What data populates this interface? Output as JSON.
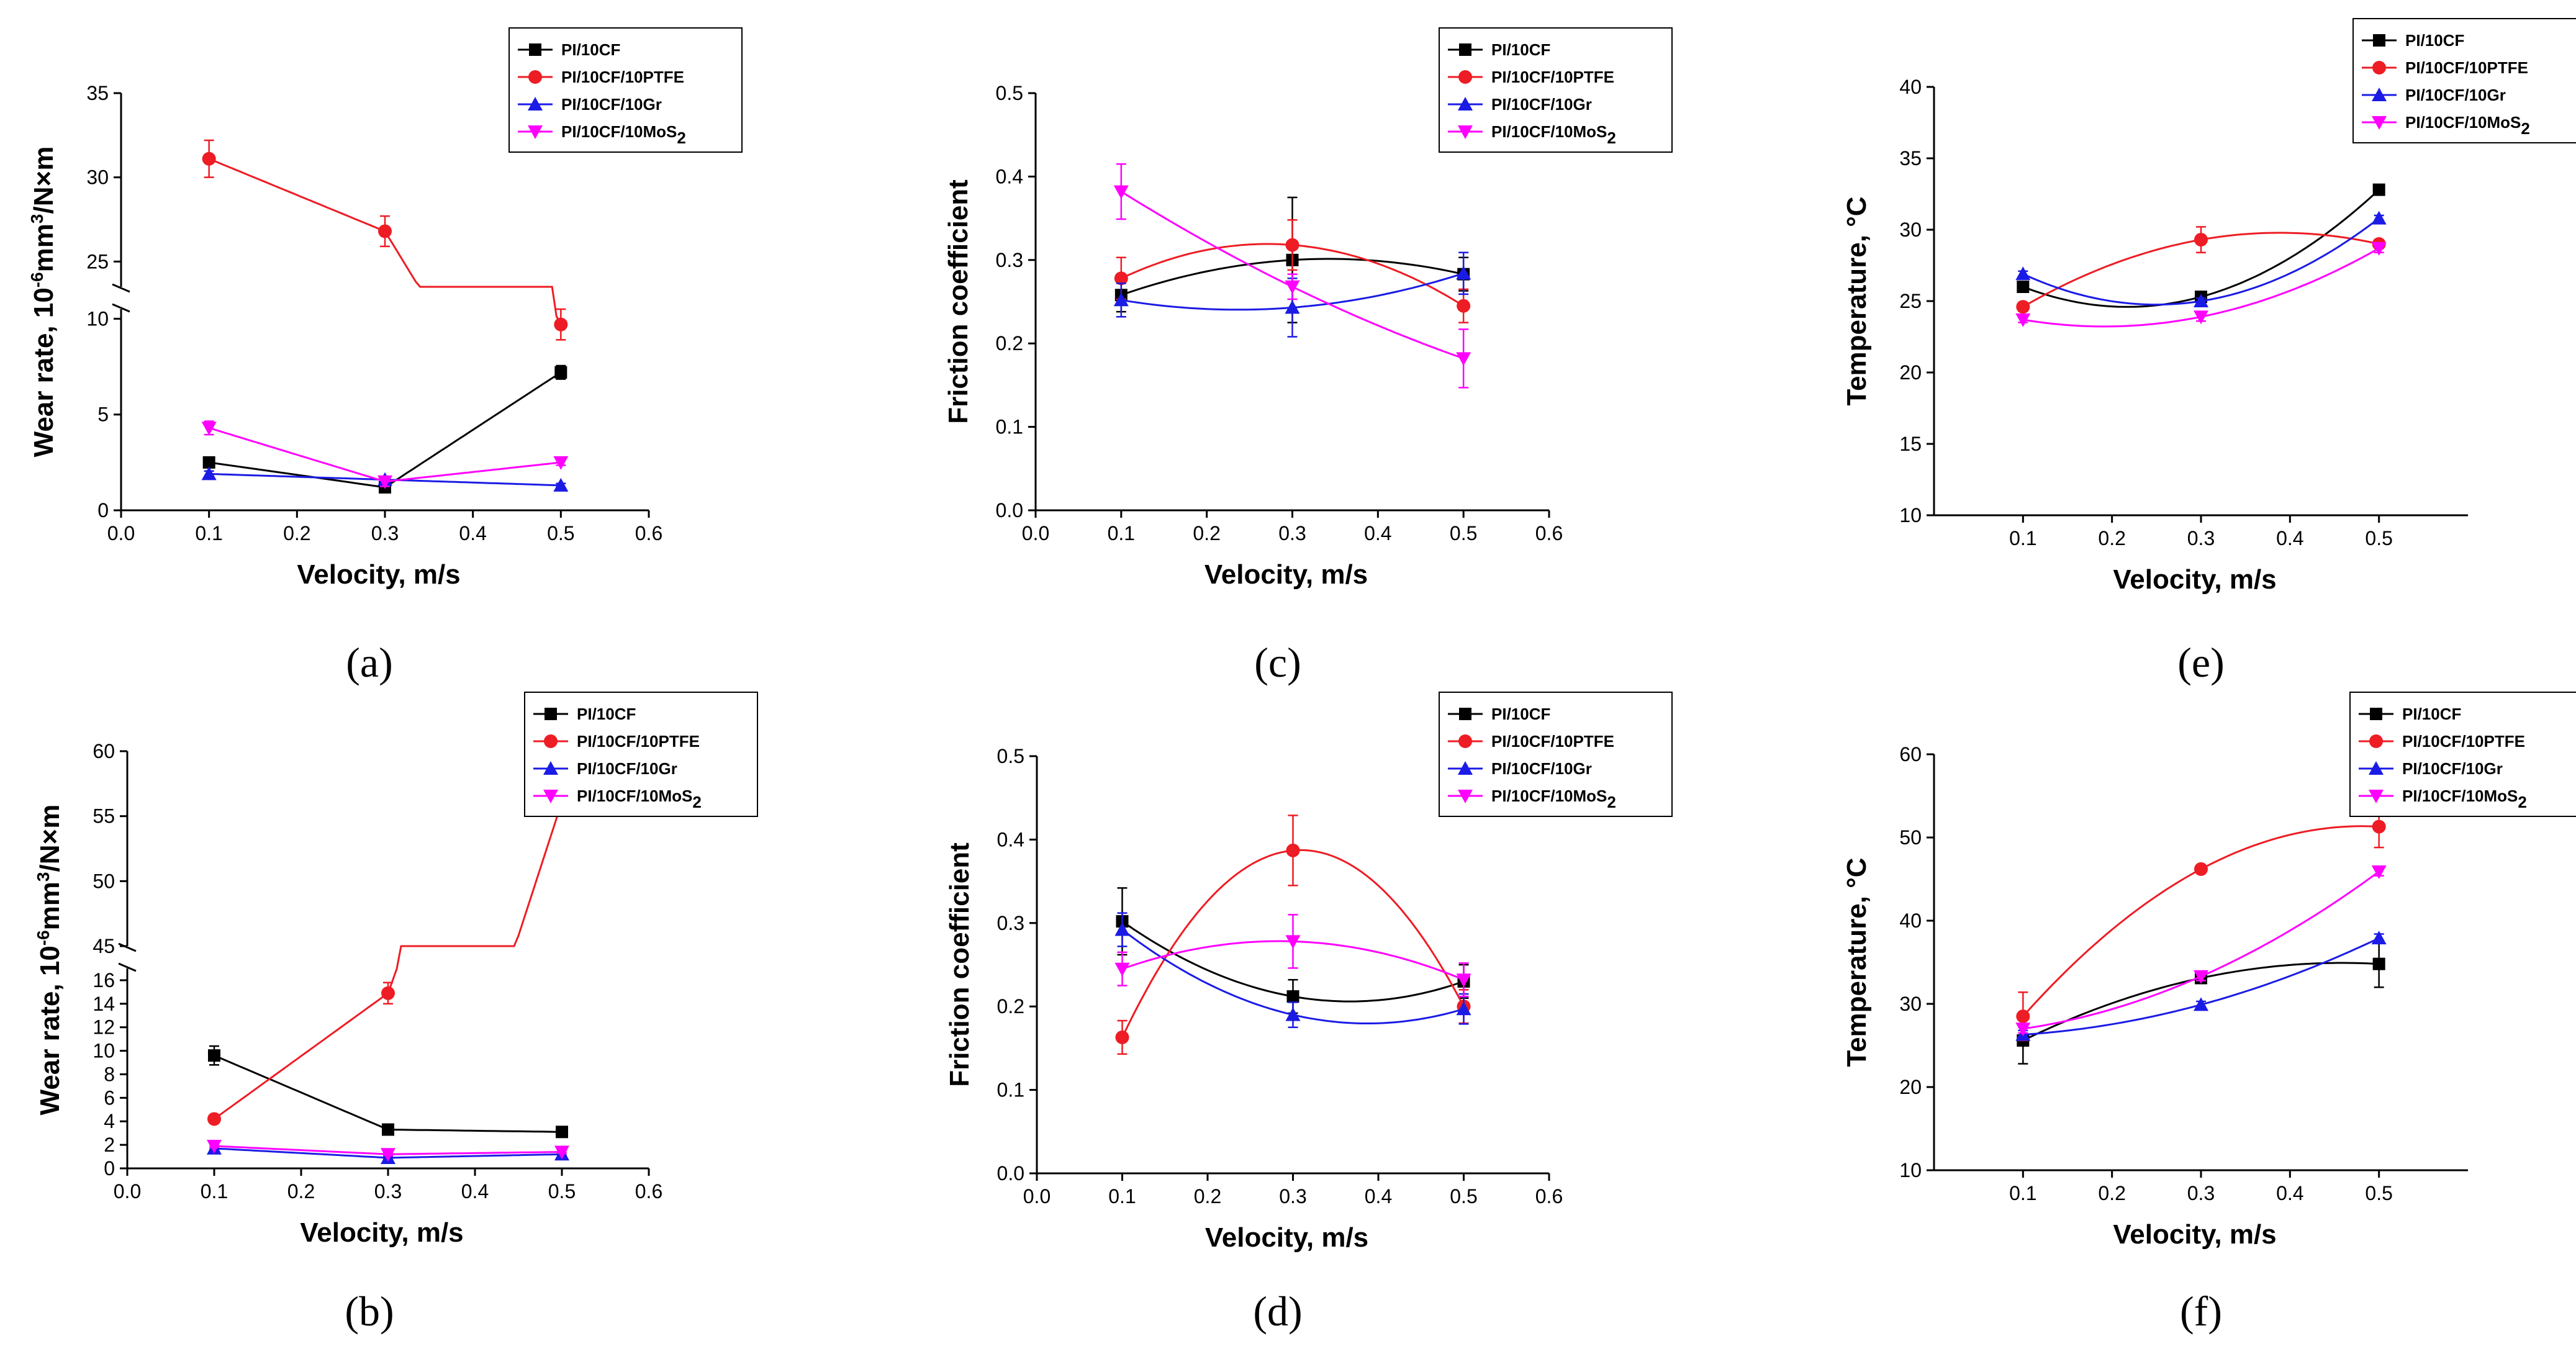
{
  "figure": {
    "series_names": [
      "PI/10CF",
      "PI/10CF/10PTFE",
      "PI/10CF/10Gr",
      "PI/10CF/10MoS2"
    ],
    "colors": {
      "PI/10CF": "#000000",
      "PI/10CF/10PTFE": "#ee1c24",
      "PI/10CF/10Gr": "#1b1be6",
      "PI/10CF/10MoS2": "#ff00ff"
    },
    "markers": {
      "PI/10CF": "square",
      "PI/10CF/10PTFE": "circle",
      "PI/10CF/10Gr": "triangle-up",
      "PI/10CF/10MoS2": "triangle-down"
    }
  },
  "chart_data": [
    {
      "panel": "(a)",
      "type": "line",
      "xlabel": "Velocity, m/s",
      "ylabel": "Wear rate, 10^-6 mm^3/N×m",
      "xlim": [
        0.0,
        0.6
      ],
      "xticks": [
        "0.0",
        "0.1",
        "0.2",
        "0.3",
        "0.4",
        "0.5",
        "0.6"
      ],
      "y_break": true,
      "ylim_lower": [
        0,
        10.5
      ],
      "yticks_lower": [
        "0",
        "5",
        "10"
      ],
      "ylim_upper": [
        23.5,
        35
      ],
      "yticks_upper": [
        "25",
        "30",
        "35"
      ],
      "x": [
        0.1,
        0.3,
        0.5
      ],
      "series": [
        {
          "name": "PI/10CF",
          "values": [
            2.5,
            1.2,
            7.2
          ],
          "errors": [
            0.2,
            0.2,
            0.35
          ]
        },
        {
          "name": "PI/10CF/10PTFE",
          "values": [
            31.1,
            26.8,
            9.7
          ],
          "errors": [
            1.1,
            0.9,
            0.8
          ]
        },
        {
          "name": "PI/10CF/10Gr",
          "values": [
            1.9,
            1.6,
            1.3
          ],
          "errors": [
            0.15,
            0.15,
            0.1
          ]
        },
        {
          "name": "PI/10CF/10MoS2",
          "values": [
            4.3,
            1.5,
            2.5
          ],
          "errors": [
            0.35,
            0.25,
            0.15
          ]
        }
      ]
    },
    {
      "panel": "(b)",
      "type": "line",
      "xlabel": "Velocity, m/s",
      "ylabel": "Wear rate, 10^-6 mm^3/N×m",
      "xlim": [
        0.0,
        0.6
      ],
      "xticks": [
        "0.0",
        "0.1",
        "0.2",
        "0.3",
        "0.4",
        "0.5",
        "0.6"
      ],
      "y_break": true,
      "ylim_lower": [
        0,
        17
      ],
      "yticks_lower": [
        "0",
        "2",
        "4",
        "6",
        "8",
        "10",
        "12",
        "14",
        "16"
      ],
      "ylim_upper": [
        45,
        60
      ],
      "yticks_upper": [
        "45",
        "50",
        "55",
        "60"
      ],
      "x": [
        0.1,
        0.3,
        0.5
      ],
      "series": [
        {
          "name": "PI/10CF",
          "values": [
            9.6,
            3.3,
            3.1
          ],
          "errors": [
            0.8,
            0.2,
            0.2
          ]
        },
        {
          "name": "PI/10CF/10PTFE",
          "values": [
            4.2,
            14.9,
            56.1
          ],
          "errors": [
            0.2,
            0.9,
            0.3
          ]
        },
        {
          "name": "PI/10CF/10Gr",
          "values": [
            1.7,
            0.9,
            1.2
          ],
          "errors": [
            0.1,
            0.1,
            0.1
          ]
        },
        {
          "name": "PI/10CF/10MoS2",
          "values": [
            1.9,
            1.2,
            1.4
          ],
          "errors": [
            0.1,
            0.1,
            0.1
          ]
        }
      ]
    },
    {
      "panel": "(c)",
      "type": "line",
      "xlabel": "Velocity, m/s",
      "ylabel": "Friction coefficient",
      "xlim": [
        0.0,
        0.6
      ],
      "xticks": [
        "0.0",
        "0.1",
        "0.2",
        "0.3",
        "0.4",
        "0.5",
        "0.6"
      ],
      "ylim": [
        0,
        0.5
      ],
      "yticks": [
        "0.0",
        "0.1",
        "0.2",
        "0.3",
        "0.4",
        "0.5"
      ],
      "x": [
        0.1,
        0.3,
        0.5
      ],
      "series": [
        {
          "name": "PI/10CF",
          "values": [
            0.258,
            0.3,
            0.283
          ],
          "errors": [
            0.02,
            0.075,
            0.02
          ]
        },
        {
          "name": "PI/10CF/10PTFE",
          "values": [
            0.278,
            0.318,
            0.245
          ],
          "errors": [
            0.025,
            0.03,
            0.02
          ]
        },
        {
          "name": "PI/10CF/10Gr",
          "values": [
            0.252,
            0.243,
            0.284
          ],
          "errors": [
            0.02,
            0.035,
            0.025
          ]
        },
        {
          "name": "PI/10CF/10MoS2",
          "values": [
            0.382,
            0.268,
            0.182
          ],
          "errors": [
            0.033,
            0.015,
            0.035
          ]
        }
      ]
    },
    {
      "panel": "(d)",
      "type": "line",
      "xlabel": "Velocity, m/s",
      "ylabel": "Friction coefficient",
      "xlim": [
        0.0,
        0.6
      ],
      "xticks": [
        "0.0",
        "0.1",
        "0.2",
        "0.3",
        "0.4",
        "0.5",
        "0.6"
      ],
      "ylim": [
        0,
        0.5
      ],
      "yticks": [
        "0.0",
        "0.1",
        "0.2",
        "0.3",
        "0.4",
        "0.5"
      ],
      "x": [
        0.1,
        0.3,
        0.5
      ],
      "series": [
        {
          "name": "PI/10CF",
          "values": [
            0.302,
            0.212,
            0.23
          ],
          "errors": [
            0.04,
            0.02,
            0.02
          ]
        },
        {
          "name": "PI/10CF/10PTFE",
          "values": [
            0.163,
            0.387,
            0.2
          ],
          "errors": [
            0.02,
            0.042,
            0.02
          ]
        },
        {
          "name": "PI/10CF/10Gr",
          "values": [
            0.292,
            0.19,
            0.197
          ],
          "errors": [
            0.02,
            0.015,
            0.018
          ]
        },
        {
          "name": "PI/10CF/10MoS2",
          "values": [
            0.245,
            0.278,
            0.232
          ],
          "errors": [
            0.02,
            0.032,
            0.02
          ]
        }
      ]
    },
    {
      "panel": "(e)",
      "type": "line",
      "xlabel": "Velocity, m/s",
      "ylabel": "Temperature, °C",
      "xlim": [
        0.0,
        0.6
      ],
      "xticks": [
        "0.1",
        "0.2",
        "0.3",
        "0.4",
        "0.5"
      ],
      "ylim": [
        10,
        40
      ],
      "yticks": [
        "10",
        "15",
        "20",
        "25",
        "30",
        "35",
        "40"
      ],
      "x": [
        0.1,
        0.3,
        0.5
      ],
      "series": [
        {
          "name": "PI/10CF",
          "values": [
            26.0,
            25.3,
            32.8
          ],
          "errors": [
            0.2,
            0.3,
            0.2
          ]
        },
        {
          "name": "PI/10CF/10PTFE",
          "values": [
            24.6,
            29.3,
            29.0
          ],
          "errors": [
            0.3,
            0.9,
            0.3
          ]
        },
        {
          "name": "PI/10CF/10Gr",
          "values": [
            26.9,
            25.0,
            30.8
          ],
          "errors": [
            0.2,
            0.2,
            0.2
          ]
        },
        {
          "name": "PI/10CF/10MoS2",
          "values": [
            23.7,
            23.9,
            28.7
          ],
          "errors": [
            0.2,
            0.3,
            0.3
          ]
        }
      ]
    },
    {
      "panel": "(f)",
      "type": "line",
      "xlabel": "Velocity, m/s",
      "ylabel": "Temperature, °C",
      "xlim": [
        0.0,
        0.6
      ],
      "xticks": [
        "0.1",
        "0.2",
        "0.3",
        "0.4",
        "0.5"
      ],
      "ylim": [
        10,
        60
      ],
      "yticks": [
        "10",
        "20",
        "30",
        "40",
        "50",
        "60"
      ],
      "x": [
        0.1,
        0.3,
        0.5
      ],
      "series": [
        {
          "name": "PI/10CF",
          "values": [
            25.6,
            33.1,
            34.8
          ],
          "errors": [
            2.8,
            0.4,
            2.8
          ]
        },
        {
          "name": "PI/10CF/10PTFE",
          "values": [
            28.5,
            46.2,
            51.3
          ],
          "errors": [
            2.9,
            0.4,
            2.5
          ]
        },
        {
          "name": "PI/10CF/10Gr",
          "values": [
            26.3,
            29.9,
            37.9
          ],
          "errors": [
            0.5,
            0.4,
            0.5
          ]
        },
        {
          "name": "PI/10CF/10MoS2",
          "values": [
            27.0,
            33.3,
            45.9
          ],
          "errors": [
            0.5,
            0.5,
            0.5
          ]
        }
      ]
    }
  ]
}
